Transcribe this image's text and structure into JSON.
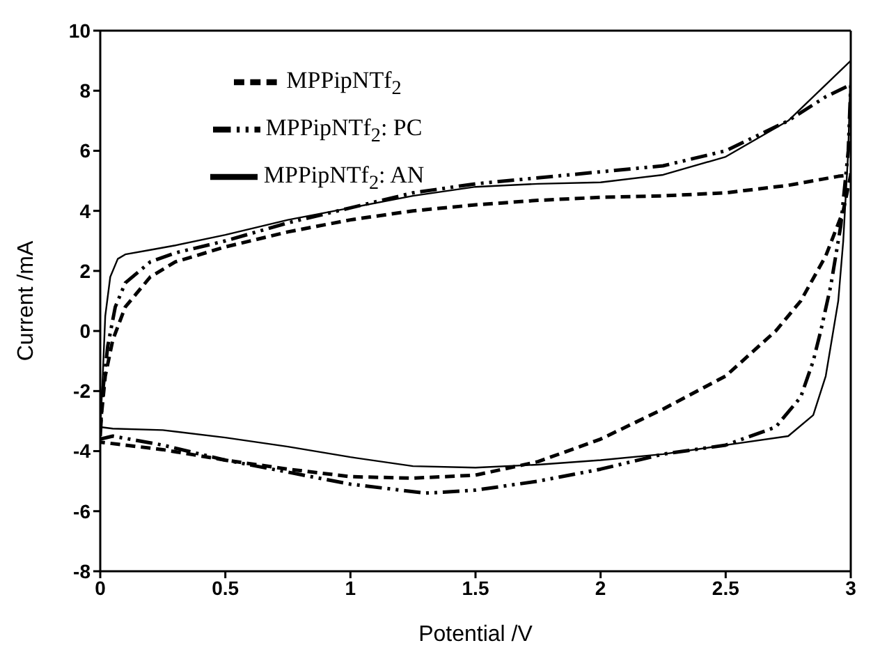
{
  "chart_data": {
    "type": "line",
    "xlabel": "Potential /V",
    "ylabel": "Current /mA",
    "xlim": [
      0,
      3
    ],
    "xticks": [
      0,
      0.5,
      1,
      1.5,
      2,
      2.5,
      3
    ],
    "ylim": [
      -8,
      10
    ],
    "yticks": [
      -8,
      -6,
      -4,
      -2,
      0,
      2,
      4,
      6,
      8,
      10
    ],
    "grid": false,
    "legend": "top left",
    "marker": "none",
    "series": [
      {
        "name": "MPPipNTf$_{2}$",
        "color": "#000000",
        "line_style": "dashed",
        "x": [
          0,
          0.02,
          0.05,
          0.1,
          0.2,
          0.3,
          0.5,
          0.75,
          1,
          1.25,
          1.5,
          1.75,
          2,
          2.25,
          2.5,
          2.75,
          2.95,
          3,
          2.97,
          2.9,
          2.8,
          2.7,
          2.5,
          2.25,
          2,
          1.75,
          1.5,
          1.25,
          1,
          0.75,
          0.5,
          0.25,
          0
        ],
        "values": [
          -3.2,
          -1.5,
          -0.3,
          0.8,
          1.8,
          2.3,
          2.8,
          3.3,
          3.7,
          4.0,
          4.2,
          4.35,
          4.45,
          4.5,
          4.6,
          4.85,
          5.15,
          5.2,
          4.0,
          2.5,
          1.0,
          0,
          -1.5,
          -2.6,
          -3.6,
          -4.35,
          -4.8,
          -4.9,
          -4.85,
          -4.6,
          -4.3,
          -3.95,
          -3.7
        ]
      },
      {
        "name": "MPPipNTf$_{2}$: PC",
        "color": "#000000",
        "line_style": "dashdot",
        "x": [
          0,
          0.01,
          0.03,
          0.06,
          0.1,
          0.2,
          0.3,
          0.5,
          0.75,
          1,
          1.25,
          1.5,
          1.75,
          2,
          2.25,
          2.5,
          2.75,
          2.9,
          3,
          2.99,
          2.96,
          2.92,
          2.88,
          2.85,
          2.8,
          2.7,
          2.5,
          2.25,
          2,
          1.75,
          1.5,
          1.3,
          1,
          0.75,
          0.5,
          0.25,
          0.05,
          0
        ],
        "values": [
          -3.5,
          -2,
          -0.5,
          0.8,
          1.6,
          2.3,
          2.6,
          3.0,
          3.6,
          4.1,
          4.6,
          4.9,
          5.1,
          5.3,
          5.5,
          6.0,
          7.0,
          7.8,
          8.2,
          6,
          3.5,
          1.5,
          0,
          -1,
          -2.2,
          -3.2,
          -3.8,
          -4.1,
          -4.6,
          -5.0,
          -5.3,
          -5.4,
          -5.1,
          -4.7,
          -4.3,
          -3.8,
          -3.5,
          -3.6
        ]
      },
      {
        "name": "MPPipNTf$_{2}$: AN",
        "color": "#000000",
        "line_style": "solid",
        "x": [
          0,
          0.01,
          0.02,
          0.04,
          0.07,
          0.1,
          0.2,
          0.3,
          0.5,
          0.75,
          1,
          1.25,
          1.5,
          1.75,
          2,
          2.25,
          2.5,
          2.75,
          2.9,
          3,
          2.99,
          2.97,
          2.95,
          2.93,
          2.9,
          2.85,
          2.75,
          2.5,
          2.25,
          2,
          1.75,
          1.5,
          1.25,
          1,
          0.75,
          0.5,
          0.25,
          0.05,
          0
        ],
        "values": [
          -3.3,
          -1.5,
          0.5,
          1.8,
          2.4,
          2.55,
          2.7,
          2.85,
          3.2,
          3.7,
          4.1,
          4.5,
          4.8,
          4.9,
          4.95,
          5.2,
          5.8,
          7.0,
          8.2,
          9.0,
          6,
          3,
          1,
          0,
          -1.5,
          -2.8,
          -3.5,
          -3.8,
          -4.1,
          -4.3,
          -4.45,
          -4.55,
          -4.5,
          -4.2,
          -3.85,
          -3.55,
          -3.3,
          -3.25,
          -3.2
        ]
      }
    ]
  }
}
